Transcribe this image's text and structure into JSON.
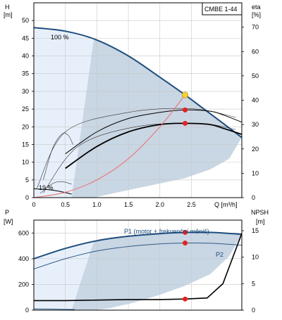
{
  "chart_data": [
    {
      "type": "line",
      "title": "CMBE 1-44",
      "left_axis": {
        "label": "H",
        "unit": "[m]",
        "range": [
          0,
          55
        ],
        "ticks": [
          0,
          5,
          10,
          15,
          20,
          25,
          30,
          35,
          40,
          45,
          50
        ]
      },
      "right_axis": {
        "label": "eta",
        "unit": "[%]",
        "range": [
          0,
          80
        ],
        "ticks": [
          0,
          10,
          20,
          30,
          40,
          50,
          60,
          70
        ]
      },
      "x_axis": {
        "label": "Q [m³/h]",
        "range": [
          0,
          3.3
        ],
        "ticks": [
          "0",
          "0.5",
          "1.0",
          "1.5",
          "2.0",
          "2.5"
        ],
        "tick_values": [
          0,
          0.5,
          1.0,
          1.5,
          2.0,
          2.5
        ]
      },
      "annotations": {
        "max_curve": "100 %",
        "min_curve": "19 %"
      },
      "series": [
        {
          "role": "head_100",
          "axis": "left",
          "x": [
            0,
            0.5,
            1.0,
            1.5,
            2.0,
            2.4,
            2.7,
            3.0,
            3.3
          ],
          "y": [
            48,
            47,
            44.5,
            40,
            34,
            29,
            25,
            21,
            17
          ]
        },
        {
          "role": "head_19",
          "axis": "left",
          "x": [
            0,
            0.2,
            0.4,
            0.6
          ],
          "y": [
            2.5,
            2.3,
            1.8,
            1.0
          ]
        },
        {
          "role": "eta_outer",
          "axis": "right",
          "x": [
            0.5,
            1.0,
            1.5,
            2.0,
            2.4,
            2.8,
            3.0,
            3.3
          ],
          "y": [
            18,
            27,
            32.5,
            35,
            36,
            35.5,
            34,
            31
          ]
        },
        {
          "role": "eta_duty",
          "axis": "right",
          "x": [
            0.5,
            1.0,
            1.5,
            2.0,
            2.4,
            2.8,
            3.0,
            3.3
          ],
          "y": [
            12,
            21,
            27,
            30,
            30.5,
            30,
            28.5,
            26
          ]
        },
        {
          "role": "system_curve",
          "axis": "left",
          "x": [
            0,
            0.5,
            1.0,
            1.5,
            2.0,
            2.4
          ],
          "y": [
            0,
            1.5,
            5,
            11,
            20,
            29
          ]
        }
      ],
      "duty_point": {
        "Q": 2.4,
        "H": 29,
        "eta_outer": 36,
        "eta_duty": 30.5
      }
    },
    {
      "type": "line",
      "left_axis": {
        "label": "P",
        "unit": "[W]",
        "range": [
          0,
          700
        ],
        "ticks": [
          0,
          200,
          400,
          600
        ]
      },
      "right_axis": {
        "label": "NPSH",
        "unit": "[m]",
        "range": [
          0,
          17
        ],
        "ticks": [
          0,
          5,
          10,
          15
        ]
      },
      "x_axis": {
        "range": [
          0,
          3.3
        ]
      },
      "series": [
        {
          "name": "P1 (motor + frekvenční měnič)",
          "axis": "left",
          "x": [
            0,
            0.5,
            1.0,
            1.5,
            2.0,
            2.4,
            2.8,
            3.3
          ],
          "y": [
            400,
            480,
            540,
            575,
            595,
            605,
            605,
            590
          ]
        },
        {
          "name": "P2",
          "axis": "left",
          "x": [
            0,
            0.5,
            1.0,
            1.5,
            2.0,
            2.4,
            2.8,
            3.3
          ],
          "y": [
            320,
            400,
            460,
            495,
            515,
            522,
            520,
            505
          ]
        },
        {
          "role": "npsh",
          "axis": "right",
          "x": [
            0,
            0.5,
            1.0,
            1.5,
            2.0,
            2.4,
            2.75,
            3.0,
            3.3
          ],
          "y": [
            1.8,
            1.8,
            1.9,
            2.0,
            2.0,
            2.1,
            2.3,
            5.0,
            14.5
          ]
        },
        {
          "role": "p_min",
          "axis": "left",
          "x": [
            0,
            0.3,
            0.65
          ],
          "y": [
            10,
            8,
            5
          ]
        }
      ],
      "duty_point": {
        "Q": 2.4,
        "P1": 605,
        "P2": 522,
        "NPSH": 2.1
      }
    }
  ],
  "colors": {
    "band": "#c9d6e3",
    "band_light": "#e7f0fa",
    "curve_main": "#1d4d7e",
    "curve_thin": "#2e5c88",
    "duty_marker": "#e8201e",
    "duty_point_fill": "#f5d23c",
    "system_curve": "#f06a6a"
  }
}
